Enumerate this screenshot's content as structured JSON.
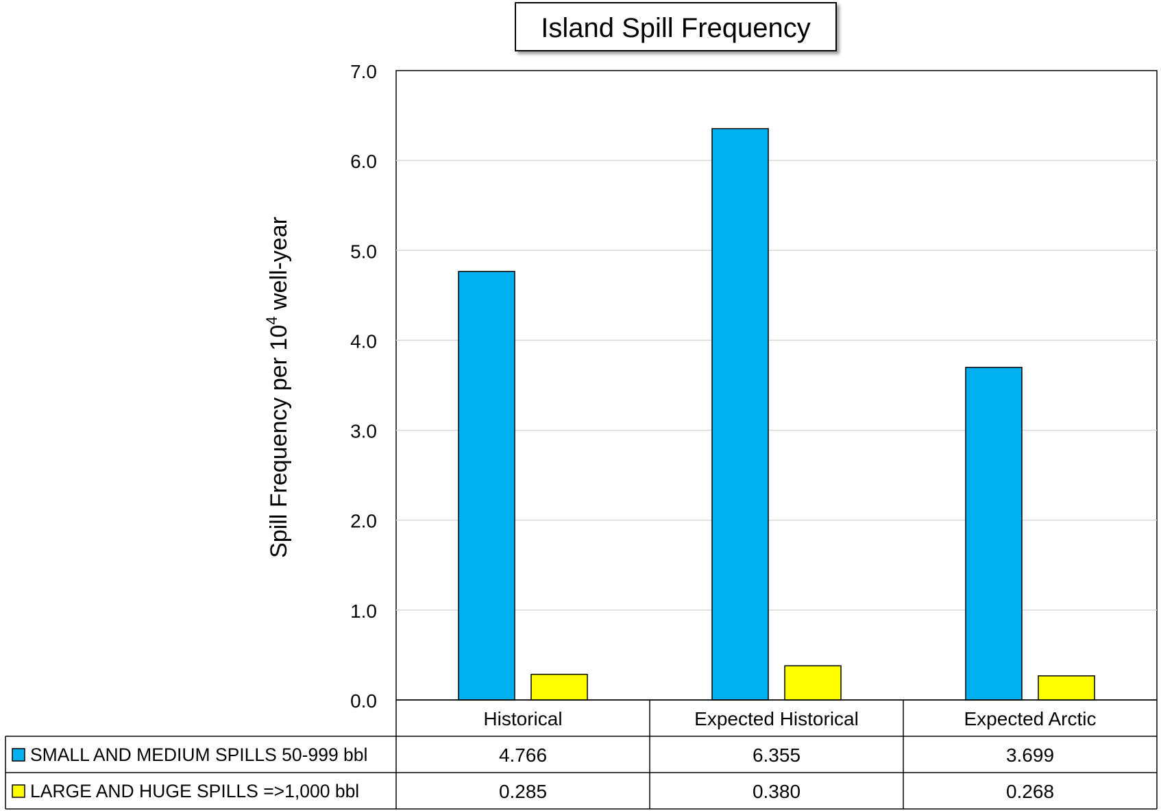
{
  "chart_data": {
    "type": "bar",
    "title": "Island Spill Frequency",
    "ylabel": "Spill Frequency per 10",
    "ylabel_superscript": "4",
    "ylabel_suffix": " well-year",
    "xlabel": "",
    "ylim": [
      0,
      7
    ],
    "yticks": [
      "0.0",
      "1.0",
      "2.0",
      "3.0",
      "4.0",
      "5.0",
      "6.0",
      "7.0"
    ],
    "grid": true,
    "legend": "data table with legend keys below the chart",
    "categories": [
      "Historical",
      "Expected Historical",
      "Expected Arctic"
    ],
    "series": [
      {
        "name": "SMALL AND MEDIUM SPILLS 50-999 bbl",
        "color": "#00B0F0",
        "values": [
          4.766,
          6.355,
          3.699
        ],
        "labels": [
          "4.766",
          "6.355",
          "3.699"
        ]
      },
      {
        "name": "LARGE AND HUGE SPILLS =>1,000 bbl",
        "color": "#FFFF00",
        "values": [
          0.285,
          0.38,
          0.268
        ],
        "labels": [
          "0.285",
          "0.380",
          "0.268"
        ]
      }
    ]
  }
}
